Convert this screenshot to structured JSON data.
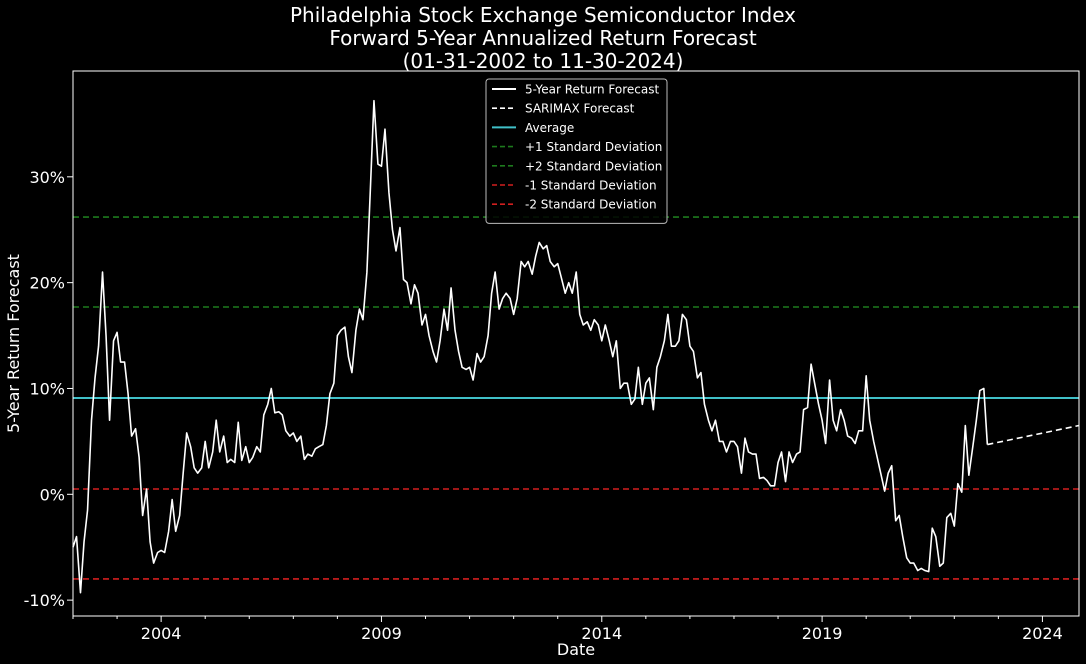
{
  "chart_data": {
    "type": "line",
    "title_lines": [
      "Philadelphia Stock Exchange Semiconductor Index",
      "Forward 5-Year Annualized Return Forecast",
      "(01-31-2002 to 11-30-2024)"
    ],
    "xlabel": "Date",
    "ylabel": "5-Year Return Forecast",
    "xlim": [
      2002.0,
      2024.83
    ],
    "ylim": [
      -11.5,
      40.0
    ],
    "x_ticks": [
      2004,
      2009,
      2014,
      2019,
      2024
    ],
    "x_tick_labels": [
      "2004",
      "2009",
      "2014",
      "2019",
      "2024"
    ],
    "y_ticks": [
      -10,
      0,
      10,
      20,
      30
    ],
    "y_tick_labels": [
      "-10%",
      "0%",
      "10%",
      "20%",
      "30%"
    ],
    "reference_lines": [
      {
        "name": "Average",
        "value": 9.1,
        "color": "#40c0c8",
        "style": "solid"
      },
      {
        "name": "+1 Standard Deviation",
        "value": 17.7,
        "color": "#1d7a1d",
        "style": "dashed"
      },
      {
        "name": "+2 Standard Deviation",
        "value": 26.2,
        "color": "#1d7a1d",
        "style": "dashed"
      },
      {
        "name": "-1 Standard Deviation",
        "value": 0.5,
        "color": "#d11f1f",
        "style": "dashed"
      },
      {
        "name": "-2 Standard Deviation",
        "value": -8.0,
        "color": "#d11f1f",
        "style": "dashed"
      }
    ],
    "legend": {
      "placement": "upper-center",
      "entries": [
        {
          "label": "5-Year Return Forecast",
          "color": "#ffffff",
          "style": "solid"
        },
        {
          "label": "SARIMAX Forecast",
          "color": "#ffffff",
          "style": "dashed"
        },
        {
          "label": "Average",
          "color": "#40c0c8",
          "style": "solid"
        },
        {
          "label": "+1 Standard Deviation",
          "color": "#1d7a1d",
          "style": "dashed"
        },
        {
          "label": "+2 Standard Deviation",
          "color": "#1d7a1d",
          "style": "dashed"
        },
        {
          "label": "-1 Standard Deviation",
          "color": "#d11f1f",
          "style": "dashed"
        },
        {
          "label": "-2 Standard Deviation",
          "color": "#d11f1f",
          "style": "dashed"
        }
      ]
    },
    "series": [
      {
        "name": "5-Year Return Forecast",
        "color": "#ffffff",
        "style": "solid",
        "points": [
          [
            2002.0,
            -5.0
          ],
          [
            2002.08,
            -4.0
          ],
          [
            2002.17,
            -9.3
          ],
          [
            2002.25,
            -4.5
          ],
          [
            2002.33,
            -1.5
          ],
          [
            2002.42,
            7.0
          ],
          [
            2002.5,
            11.0
          ],
          [
            2002.58,
            14.0
          ],
          [
            2002.67,
            21.0
          ],
          [
            2002.75,
            15.0
          ],
          [
            2002.83,
            7.0
          ],
          [
            2002.92,
            14.5
          ],
          [
            2003.0,
            15.3
          ],
          [
            2003.08,
            12.5
          ],
          [
            2003.17,
            12.5
          ],
          [
            2003.25,
            9.5
          ],
          [
            2003.33,
            5.5
          ],
          [
            2003.42,
            6.2
          ],
          [
            2003.5,
            3.5
          ],
          [
            2003.58,
            -2.0
          ],
          [
            2003.67,
            0.5
          ],
          [
            2003.75,
            -4.5
          ],
          [
            2003.83,
            -6.5
          ],
          [
            2003.92,
            -5.5
          ],
          [
            2004.0,
            -5.3
          ],
          [
            2004.08,
            -5.5
          ],
          [
            2004.17,
            -3.5
          ],
          [
            2004.25,
            -0.5
          ],
          [
            2004.33,
            -3.5
          ],
          [
            2004.42,
            -2.0
          ],
          [
            2004.5,
            2.0
          ],
          [
            2004.58,
            5.8
          ],
          [
            2004.67,
            4.5
          ],
          [
            2004.75,
            2.5
          ],
          [
            2004.83,
            2.0
          ],
          [
            2004.92,
            2.5
          ],
          [
            2005.0,
            5.0
          ],
          [
            2005.08,
            2.5
          ],
          [
            2005.17,
            4.0
          ],
          [
            2005.25,
            7.0
          ],
          [
            2005.33,
            4.0
          ],
          [
            2005.42,
            5.5
          ],
          [
            2005.5,
            3.0
          ],
          [
            2005.58,
            3.3
          ],
          [
            2005.67,
            3.0
          ],
          [
            2005.75,
            6.8
          ],
          [
            2005.83,
            3.2
          ],
          [
            2005.92,
            4.5
          ],
          [
            2006.0,
            3.0
          ],
          [
            2006.08,
            3.5
          ],
          [
            2006.17,
            4.5
          ],
          [
            2006.25,
            4.0
          ],
          [
            2006.33,
            7.5
          ],
          [
            2006.42,
            8.5
          ],
          [
            2006.5,
            10.0
          ],
          [
            2006.58,
            7.7
          ],
          [
            2006.67,
            7.8
          ],
          [
            2006.75,
            7.5
          ],
          [
            2006.83,
            6.0
          ],
          [
            2006.92,
            5.5
          ],
          [
            2007.0,
            5.8
          ],
          [
            2007.08,
            5.0
          ],
          [
            2007.17,
            5.5
          ],
          [
            2007.25,
            3.3
          ],
          [
            2007.33,
            3.8
          ],
          [
            2007.42,
            3.6
          ],
          [
            2007.5,
            4.3
          ],
          [
            2007.58,
            4.5
          ],
          [
            2007.67,
            4.7
          ],
          [
            2007.75,
            6.5
          ],
          [
            2007.83,
            9.5
          ],
          [
            2007.92,
            10.5
          ],
          [
            2008.0,
            15.0
          ],
          [
            2008.08,
            15.5
          ],
          [
            2008.17,
            15.8
          ],
          [
            2008.25,
            13.0
          ],
          [
            2008.33,
            11.5
          ],
          [
            2008.42,
            15.5
          ],
          [
            2008.5,
            17.5
          ],
          [
            2008.58,
            16.5
          ],
          [
            2008.67,
            21.0
          ],
          [
            2008.75,
            29.0
          ],
          [
            2008.83,
            37.2
          ],
          [
            2008.92,
            31.2
          ],
          [
            2009.0,
            31.0
          ],
          [
            2009.08,
            34.5
          ],
          [
            2009.17,
            28.5
          ],
          [
            2009.25,
            25.0
          ],
          [
            2009.33,
            23.0
          ],
          [
            2009.42,
            25.2
          ],
          [
            2009.5,
            20.3
          ],
          [
            2009.58,
            20.0
          ],
          [
            2009.67,
            18.0
          ],
          [
            2009.75,
            19.8
          ],
          [
            2009.83,
            19.0
          ],
          [
            2009.92,
            16.0
          ],
          [
            2010.0,
            17.0
          ],
          [
            2010.08,
            15.0
          ],
          [
            2010.17,
            13.5
          ],
          [
            2010.25,
            12.5
          ],
          [
            2010.33,
            14.5
          ],
          [
            2010.42,
            17.5
          ],
          [
            2010.5,
            15.5
          ],
          [
            2010.58,
            19.5
          ],
          [
            2010.67,
            15.5
          ],
          [
            2010.75,
            13.5
          ],
          [
            2010.83,
            12.0
          ],
          [
            2010.92,
            11.8
          ],
          [
            2011.0,
            12.0
          ],
          [
            2011.08,
            10.8
          ],
          [
            2011.17,
            13.3
          ],
          [
            2011.25,
            12.5
          ],
          [
            2011.33,
            13.0
          ],
          [
            2011.42,
            15.0
          ],
          [
            2011.5,
            19.0
          ],
          [
            2011.58,
            21.0
          ],
          [
            2011.67,
            17.5
          ],
          [
            2011.75,
            18.5
          ],
          [
            2011.83,
            19.0
          ],
          [
            2011.92,
            18.5
          ],
          [
            2012.0,
            17.0
          ],
          [
            2012.08,
            18.5
          ],
          [
            2012.17,
            22.0
          ],
          [
            2012.25,
            21.5
          ],
          [
            2012.33,
            22.0
          ],
          [
            2012.42,
            20.8
          ],
          [
            2012.5,
            22.5
          ],
          [
            2012.58,
            23.8
          ],
          [
            2012.67,
            23.2
          ],
          [
            2012.75,
            23.5
          ],
          [
            2012.83,
            22.0
          ],
          [
            2012.92,
            21.5
          ],
          [
            2013.0,
            21.8
          ],
          [
            2013.08,
            20.5
          ],
          [
            2013.17,
            19.0
          ],
          [
            2013.25,
            20.0
          ],
          [
            2013.33,
            19.0
          ],
          [
            2013.42,
            21.0
          ],
          [
            2013.5,
            17.0
          ],
          [
            2013.58,
            16.0
          ],
          [
            2013.67,
            16.3
          ],
          [
            2013.75,
            15.5
          ],
          [
            2013.83,
            16.5
          ],
          [
            2013.92,
            16.0
          ],
          [
            2014.0,
            14.5
          ],
          [
            2014.08,
            16.0
          ],
          [
            2014.17,
            14.5
          ],
          [
            2014.25,
            13.0
          ],
          [
            2014.33,
            14.5
          ],
          [
            2014.42,
            10.0
          ],
          [
            2014.5,
            10.5
          ],
          [
            2014.58,
            10.5
          ],
          [
            2014.67,
            8.5
          ],
          [
            2014.75,
            9.0
          ],
          [
            2014.83,
            12.0
          ],
          [
            2014.92,
            8.5
          ],
          [
            2015.0,
            10.5
          ],
          [
            2015.08,
            11.0
          ],
          [
            2015.17,
            8.0
          ],
          [
            2015.25,
            12.0
          ],
          [
            2015.33,
            13.0
          ],
          [
            2015.42,
            14.5
          ],
          [
            2015.5,
            17.0
          ],
          [
            2015.58,
            14.0
          ],
          [
            2015.67,
            14.0
          ],
          [
            2015.75,
            14.5
          ],
          [
            2015.83,
            17.0
          ],
          [
            2015.92,
            16.5
          ],
          [
            2016.0,
            14.0
          ],
          [
            2016.08,
            13.5
          ],
          [
            2016.17,
            11.0
          ],
          [
            2016.25,
            11.5
          ],
          [
            2016.33,
            8.5
          ],
          [
            2016.42,
            7.0
          ],
          [
            2016.5,
            6.0
          ],
          [
            2016.58,
            7.0
          ],
          [
            2016.67,
            5.0
          ],
          [
            2016.75,
            5.0
          ],
          [
            2016.83,
            4.0
          ],
          [
            2016.92,
            5.0
          ],
          [
            2017.0,
            5.0
          ],
          [
            2017.08,
            4.5
          ],
          [
            2017.17,
            2.0
          ],
          [
            2017.25,
            5.3
          ],
          [
            2017.33,
            4.0
          ],
          [
            2017.42,
            3.8
          ],
          [
            2017.5,
            3.8
          ],
          [
            2017.58,
            1.5
          ],
          [
            2017.67,
            1.6
          ],
          [
            2017.75,
            1.3
          ],
          [
            2017.83,
            0.8
          ],
          [
            2017.92,
            0.8
          ],
          [
            2018.0,
            3.0
          ],
          [
            2018.08,
            4.0
          ],
          [
            2018.17,
            1.2
          ],
          [
            2018.25,
            4.0
          ],
          [
            2018.33,
            3.0
          ],
          [
            2018.42,
            3.8
          ],
          [
            2018.5,
            4.0
          ],
          [
            2018.58,
            8.0
          ],
          [
            2018.67,
            8.2
          ],
          [
            2018.75,
            12.3
          ],
          [
            2018.83,
            10.5
          ],
          [
            2018.92,
            8.5
          ],
          [
            2019.0,
            7.0
          ],
          [
            2019.08,
            4.8
          ],
          [
            2019.17,
            10.8
          ],
          [
            2019.25,
            7.0
          ],
          [
            2019.33,
            6.0
          ],
          [
            2019.42,
            8.0
          ],
          [
            2019.5,
            7.0
          ],
          [
            2019.58,
            5.5
          ],
          [
            2019.67,
            5.3
          ],
          [
            2019.75,
            4.8
          ],
          [
            2019.83,
            6.0
          ],
          [
            2019.92,
            6.0
          ],
          [
            2020.0,
            11.2
          ],
          [
            2020.08,
            7.0
          ],
          [
            2020.17,
            5.0
          ],
          [
            2020.25,
            3.5
          ],
          [
            2020.33,
            2.0
          ],
          [
            2020.42,
            0.3
          ],
          [
            2020.5,
            2.0
          ],
          [
            2020.58,
            2.7
          ],
          [
            2020.67,
            -2.5
          ],
          [
            2020.75,
            -2.0
          ],
          [
            2020.83,
            -4.0
          ],
          [
            2020.92,
            -6.0
          ],
          [
            2021.0,
            -6.5
          ],
          [
            2021.08,
            -6.5
          ],
          [
            2021.17,
            -7.2
          ],
          [
            2021.25,
            -7.0
          ],
          [
            2021.33,
            -7.2
          ],
          [
            2021.42,
            -7.3
          ],
          [
            2021.5,
            -3.2
          ],
          [
            2021.58,
            -4.0
          ],
          [
            2021.67,
            -6.8
          ],
          [
            2021.75,
            -6.5
          ],
          [
            2021.83,
            -2.2
          ],
          [
            2021.92,
            -1.8
          ],
          [
            2022.0,
            -3.0
          ],
          [
            2022.08,
            1.0
          ],
          [
            2022.17,
            0.2
          ],
          [
            2022.25,
            6.5
          ],
          [
            2022.33,
            1.8
          ],
          [
            2022.42,
            4.5
          ],
          [
            2022.5,
            7.0
          ],
          [
            2022.58,
            9.8
          ],
          [
            2022.67,
            10.0
          ],
          [
            2022.75,
            4.7
          ]
        ]
      },
      {
        "name": "SARIMAX Forecast",
        "color": "#ffffff",
        "style": "dashed",
        "points": [
          [
            2022.75,
            4.7
          ],
          [
            2024.83,
            6.5
          ]
        ]
      }
    ]
  }
}
